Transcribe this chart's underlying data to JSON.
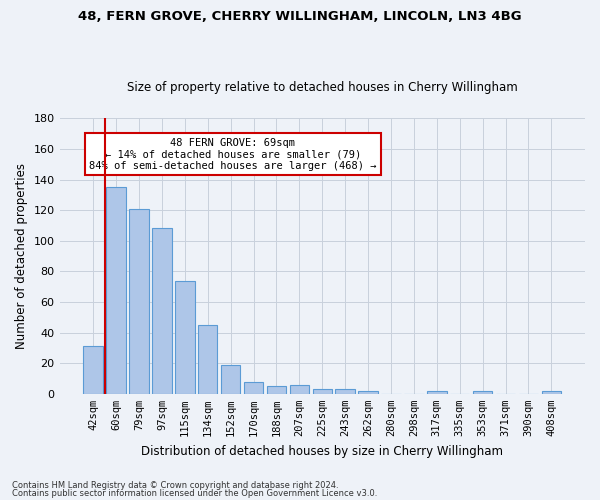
{
  "title1": "48, FERN GROVE, CHERRY WILLINGHAM, LINCOLN, LN3 4BG",
  "title2": "Size of property relative to detached houses in Cherry Willingham",
  "xlabel": "Distribution of detached houses by size in Cherry Willingham",
  "ylabel": "Number of detached properties",
  "footnote1": "Contains HM Land Registry data © Crown copyright and database right 2024.",
  "footnote2": "Contains public sector information licensed under the Open Government Licence v3.0.",
  "bin_labels": [
    "42sqm",
    "60sqm",
    "79sqm",
    "97sqm",
    "115sqm",
    "134sqm",
    "152sqm",
    "170sqm",
    "188sqm",
    "207sqm",
    "225sqm",
    "243sqm",
    "262sqm",
    "280sqm",
    "298sqm",
    "317sqm",
    "335sqm",
    "353sqm",
    "371sqm",
    "390sqm",
    "408sqm"
  ],
  "bin_values": [
    31,
    135,
    121,
    108,
    74,
    45,
    19,
    8,
    5,
    6,
    3,
    3,
    2,
    0,
    0,
    2,
    0,
    2,
    0,
    0,
    2
  ],
  "bar_color": "#aec6e8",
  "bar_edge_color": "#5b9bd5",
  "red_line_x": 1.0,
  "annotation_text1": "48 FERN GROVE: 69sqm",
  "annotation_text2": "← 14% of detached houses are smaller (79)",
  "annotation_text3": "84% of semi-detached houses are larger (468) →",
  "annotation_box_facecolor": "#ffffff",
  "annotation_border_color": "#cc0000",
  "red_line_color": "#cc0000",
  "ylim": [
    0,
    180
  ],
  "yticks": [
    0,
    20,
    40,
    60,
    80,
    100,
    120,
    140,
    160,
    180
  ],
  "grid_color": "#c8d0dc",
  "background_color": "#eef2f8"
}
